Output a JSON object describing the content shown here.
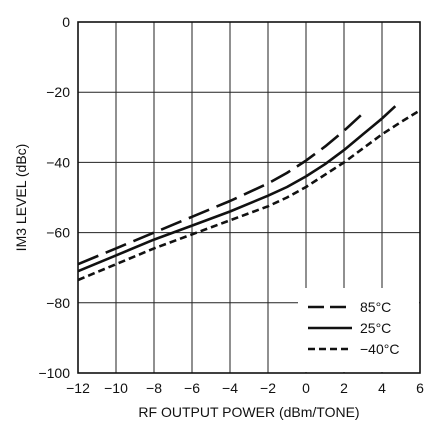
{
  "chart_data": {
    "type": "line",
    "title": "",
    "xlabel": "RF OUTPUT POWER (dBm/TONE)",
    "ylabel": "IM3 LEVEL (dBc)",
    "xlim": [
      -12,
      6
    ],
    "ylim": [
      -100,
      0
    ],
    "xticks": [
      -12,
      -10,
      -8,
      -6,
      -4,
      -2,
      0,
      2,
      4,
      6
    ],
    "yticks": [
      -100,
      -80,
      -60,
      -40,
      -20,
      0
    ],
    "xtick_labels": [
      "−12",
      "−10",
      "−8",
      "−6",
      "−4",
      "−2",
      "0",
      "2",
      "4",
      "6"
    ],
    "ytick_labels": [
      "−100",
      "−80",
      "−60",
      "−40",
      "−20",
      "0"
    ],
    "grid": true,
    "legend_position": "bottom-right",
    "series": [
      {
        "name": "85°C",
        "style": "long-dash",
        "color": "#111111",
        "x": [
          -12,
          -10,
          -8,
          -6,
          -4,
          -2,
          -1,
          0,
          1,
          2,
          3
        ],
        "y": [
          -69,
          -64.5,
          -60,
          -55.5,
          -51,
          -46,
          -43,
          -39.5,
          -35.5,
          -31,
          -26
        ]
      },
      {
        "name": "25°C",
        "style": "solid",
        "color": "#111111",
        "x": [
          -12,
          -10,
          -8,
          -6,
          -4,
          -2,
          -1,
          0,
          1,
          2,
          3,
          4,
          4.7
        ],
        "y": [
          -71,
          -66.5,
          -62,
          -58,
          -54,
          -49.5,
          -47,
          -44,
          -40.5,
          -36.5,
          -32,
          -27.5,
          -24
        ]
      },
      {
        "name": "−40°C",
        "style": "short-dash",
        "color": "#111111",
        "x": [
          -12,
          -10,
          -8,
          -6,
          -4,
          -2,
          -1,
          0,
          1,
          2,
          3,
          4,
          5,
          5.9
        ],
        "y": [
          -73.5,
          -69,
          -64.5,
          -60.5,
          -56.5,
          -52.5,
          -50,
          -47,
          -43.5,
          -40,
          -36,
          -32,
          -28.5,
          -25.5
        ]
      }
    ]
  }
}
